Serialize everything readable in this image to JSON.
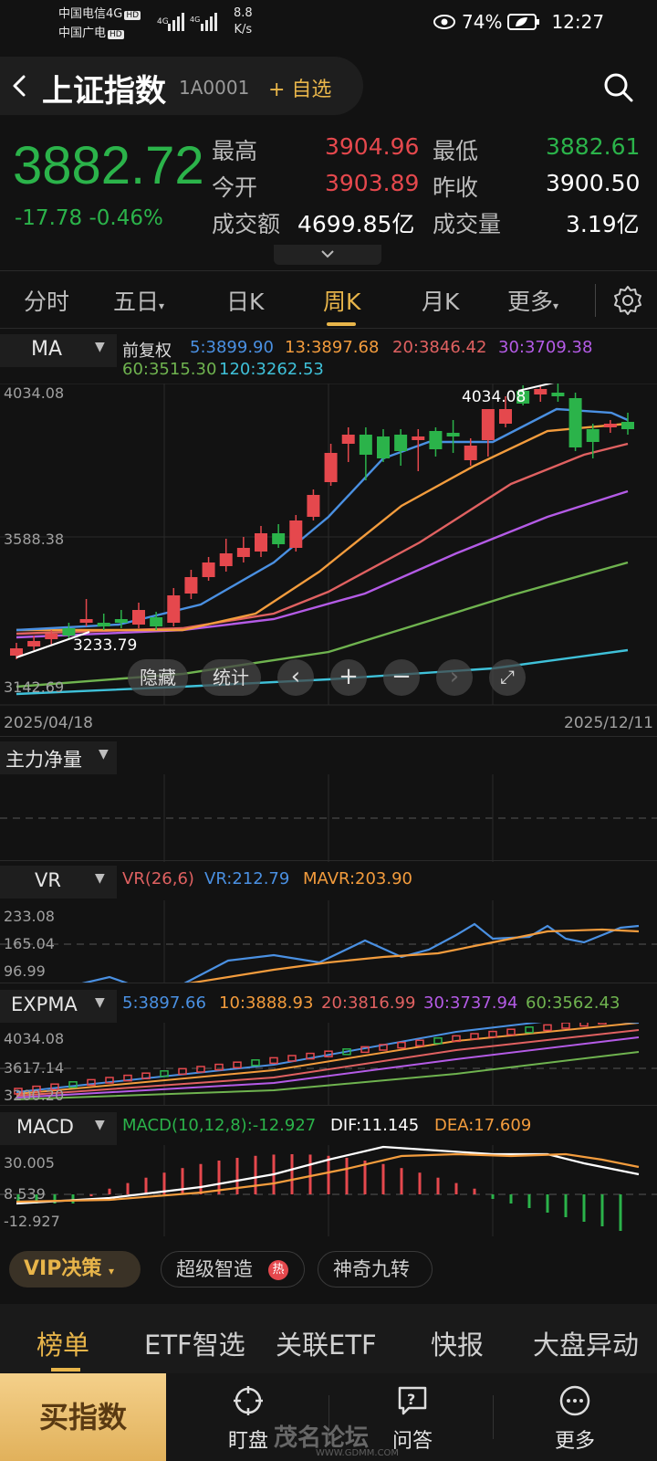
{
  "status_bar": {
    "carrier1": "中国电信4G",
    "carrier2": "中国广电",
    "hd": "HD",
    "net_speed": "8.8",
    "net_unit": "K/s",
    "battery": "74%",
    "time": "12:27",
    "eye_icon": "eye-icon",
    "battery_icon": "battery-leaf-icon"
  },
  "header": {
    "title": "上证指数",
    "code": "1A0001",
    "add_label": "+ 自选"
  },
  "quote": {
    "price": "3882.72",
    "change": "-17.78  -0.46%",
    "high_label": "最高",
    "high": "3904.96",
    "low_label": "最低",
    "low": "3882.61",
    "open_label": "今开",
    "open": "3903.89",
    "prev_close_label": "昨收",
    "prev_close": "3900.50",
    "turnover_label": "成交额",
    "turnover": "4699.85亿",
    "volume_label": "成交量",
    "volume": "3.19亿"
  },
  "tabs": [
    "分时",
    "五日",
    "日K",
    "周K",
    "月K",
    "更多"
  ],
  "tab_active": "周K",
  "ma": {
    "selector": "MA",
    "adjust": "前复权",
    "ma5": "5:3899.90",
    "ma13": "13:3897.68",
    "ma20": "20:3846.42",
    "ma30": "30:3709.38",
    "ma60": "60:3515.30",
    "ma120": "120:3262.53"
  },
  "main_chart": {
    "y_top": "4034.08",
    "y_mid": "3588.38",
    "y_bottom": "3142.69",
    "high_marker": "4034.08",
    "low_marker": "3233.79",
    "date_start": "2025/04/18",
    "date_end": "2025/12/11",
    "hide_label": "隐藏",
    "stats_label": "统计"
  },
  "indicators": {
    "flow": {
      "selector": "主力净量"
    },
    "vr": {
      "selector": "VR",
      "params": "VR(26,6)",
      "vr": "VR:212.79",
      "mavr": "MAVR:203.90",
      "axis_top": "233.08",
      "axis_mid": "165.04",
      "axis_bottom": "96.99"
    },
    "expma": {
      "selector": "EXPMA",
      "e5": "5:3897.66",
      "e10": "10:3888.93",
      "e20": "20:3816.99",
      "e30": "30:3737.94",
      "e60": "60:3562.43",
      "axis_top": "4034.08",
      "axis_mid": "3617.14",
      "axis_bottom": "3200.20"
    },
    "macd": {
      "selector": "MACD",
      "macd": "MACD(10,12,8):-12.927",
      "dif": "DIF:11.145",
      "dea": "DEA:17.609",
      "axis_top": "30.005",
      "axis_mid": "8.539",
      "axis_bottom": "-12.927"
    }
  },
  "strategy": {
    "vip": "VIP决策",
    "chip1": "超级智造",
    "hot": "热",
    "chip2": "神奇九转"
  },
  "bottom_tabs": [
    "榜单",
    "ETF智选",
    "关联ETF",
    "快报",
    "大盘异动"
  ],
  "actions": {
    "buy": "买指数",
    "watch": "盯盘",
    "ask": "问答",
    "more": "更多"
  },
  "watermark": {
    "text": "茂名论坛",
    "url": "WWW.GDMM.COM"
  },
  "colors": {
    "up": "#e5484d",
    "down": "#2bb34a",
    "accent": "#e8b54a",
    "ma5": "#4a90e2",
    "ma13": "#f39c3d",
    "ma20": "#e06161",
    "ma30": "#b45be6",
    "ma60": "#6fb34f",
    "ma120": "#3fc1d9"
  }
}
